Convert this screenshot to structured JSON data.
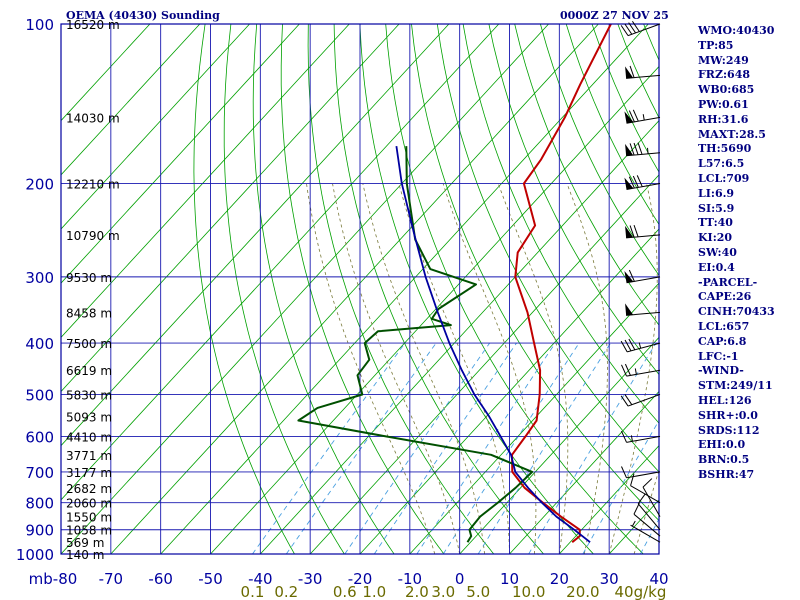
{
  "header": {
    "station": "OEMA (40430) Sounding",
    "time": "0000Z 27 NOV 25"
  },
  "indices": [
    "WMO:40430",
    "TP:85",
    "MW:249",
    "FRZ:648",
    "WB0:685",
    "PW:0.61",
    "RH:31.6",
    "MAXT:28.5",
    "TH:5690",
    "L57:6.5",
    "LCL:709",
    "LI:6.9",
    "SI:5.9",
    "TT:40",
    "KI:20",
    "SW:40",
    "EI:0.4",
    "-PARCEL-",
    "CAPE:26",
    "CINH:70433",
    "LCL:657",
    "CAP:6.8",
    "LFC:-1",
    "-WIND-",
    "STM:249/11",
    "HEL:126",
    "SHR+:0.0",
    "SRDS:112",
    "EHI:0.0",
    "BRN:0.5",
    "BSHR:47"
  ],
  "colors": {
    "frame": "#0000a0",
    "grid": "#1818b0",
    "isotherm": "#00a000",
    "dry_adiabat": "#00a000",
    "moist_adiabat": "#7a7a3a",
    "mixing_ratio": "#4aa0e0",
    "temperature": "#c00000",
    "dewpoint": "#005000",
    "parcel": "#0000a0",
    "wind_barb": "#000000",
    "pressure_label": "#0000a0",
    "temp_label": "#0000a0",
    "mixing_label": "#6a6a00",
    "height_label": "#000000"
  },
  "chart_data": {
    "type": "line",
    "title": "OEMA (40430) Sounding",
    "x_axis": {
      "label": "",
      "range": [
        -80,
        40
      ],
      "ticks": [
        -80,
        -70,
        -60,
        -50,
        -40,
        -30,
        -20,
        -10,
        0,
        10,
        20,
        30,
        40
      ],
      "tick_labels": [
        "mb-80",
        "-70",
        "-60",
        "-50",
        "-40",
        "-30",
        "-20",
        "-10",
        "0",
        "10",
        "20",
        "30",
        "40"
      ]
    },
    "y_axis": {
      "label": "",
      "scale": "log",
      "range": [
        1000,
        100
      ],
      "ticks": [
        1000,
        900,
        800,
        700,
        600,
        500,
        400,
        300,
        200,
        100
      ],
      "tick_labels": [
        "1000",
        "900",
        "800",
        "700",
        "600",
        "500",
        "400",
        "300",
        "200",
        "100"
      ]
    },
    "height_labels": [
      {
        "p": 100,
        "label": "16520 m"
      },
      {
        "p": 150,
        "label": "14030 m"
      },
      {
        "p": 200,
        "label": "12210 m"
      },
      {
        "p": 250,
        "label": "10790 m"
      },
      {
        "p": 300,
        "label": "9530 m"
      },
      {
        "p": 350,
        "label": "8458 m"
      },
      {
        "p": 400,
        "label": "7500 m"
      },
      {
        "p": 450,
        "label": "6619 m"
      },
      {
        "p": 500,
        "label": "5830 m"
      },
      {
        "p": 550,
        "label": "5093 m"
      },
      {
        "p": 600,
        "label": "4410 m"
      },
      {
        "p": 650,
        "label": "3771 m"
      },
      {
        "p": 700,
        "label": "3177 m"
      },
      {
        "p": 750,
        "label": "2682 m"
      },
      {
        "p": 800,
        "label": "2060 m"
      },
      {
        "p": 850,
        "label": "1550 m"
      },
      {
        "p": 900,
        "label": "1058 m"
      },
      {
        "p": 950,
        "label": "569 m"
      },
      {
        "p": 1000,
        "label": "140 m"
      }
    ],
    "mixing_ratio_labels": [
      {
        "w": 0.1,
        "label": "0.1"
      },
      {
        "w": 0.2,
        "label": "0.2"
      },
      {
        "w": 0.6,
        "label": "0.6"
      },
      {
        "w": 1.0,
        "label": "1.0"
      },
      {
        "w": 2.0,
        "label": "2.0"
      },
      {
        "w": 3.0,
        "label": "3.0"
      },
      {
        "w": 5.0,
        "label": "5.0"
      },
      {
        "w": 10.0,
        "label": "10.0"
      },
      {
        "w": 20.0,
        "label": "20.0"
      },
      {
        "w": 40.0,
        "label": "40g/kg"
      }
    ],
    "grid": true,
    "series": [
      {
        "key": "temperature",
        "points": [
          [
            950,
            20.4
          ],
          [
            925,
            20.8
          ],
          [
            900,
            19.6
          ],
          [
            850,
            13.4
          ],
          [
            800,
            7.2
          ],
          [
            750,
            0.8
          ],
          [
            700,
            -4.6
          ],
          [
            650,
            -7.8
          ],
          [
            600,
            -8.5
          ],
          [
            560,
            -9.2
          ],
          [
            500,
            -13.4
          ],
          [
            450,
            -17.8
          ],
          [
            400,
            -24.0
          ],
          [
            350,
            -31.0
          ],
          [
            300,
            -40.0
          ],
          [
            270,
            -44.0
          ],
          [
            240,
            -45.5
          ],
          [
            200,
            -55.5
          ],
          [
            180,
            -56.5
          ],
          [
            150,
            -59.5
          ],
          [
            130,
            -62.5
          ],
          [
            100,
            -67.5
          ]
        ]
      },
      {
        "key": "dewpoint",
        "points": [
          [
            950,
            -0.6
          ],
          [
            925,
            -1.0
          ],
          [
            900,
            -2.5
          ],
          [
            850,
            -2.8
          ],
          [
            800,
            -1.8
          ],
          [
            750,
            -1.0
          ],
          [
            700,
            -0.6
          ],
          [
            650,
            -12.0
          ],
          [
            600,
            -36.5
          ],
          [
            560,
            -57.0
          ],
          [
            530,
            -55.5
          ],
          [
            500,
            -49.0
          ],
          [
            460,
            -53.5
          ],
          [
            430,
            -54.0
          ],
          [
            400,
            -58.0
          ],
          [
            380,
            -57.5
          ],
          [
            370,
            -44.0
          ],
          [
            360,
            -49.0
          ],
          [
            345,
            -49.5
          ],
          [
            310,
            -46.5
          ],
          [
            290,
            -58.5
          ],
          [
            255,
            -67.0
          ],
          [
            200,
            -79.0
          ],
          [
            170,
            -86.0
          ]
        ]
      },
      {
        "key": "parcel",
        "points": [
          [
            950,
            24.0
          ],
          [
            900,
            18.5
          ],
          [
            850,
            12.5
          ],
          [
            800,
            7.0
          ],
          [
            750,
            1.5
          ],
          [
            700,
            -4.0
          ],
          [
            650,
            -8.0
          ],
          [
            600,
            -13.5
          ],
          [
            550,
            -19.5
          ],
          [
            500,
            -26.5
          ],
          [
            450,
            -33.5
          ],
          [
            400,
            -41.0
          ],
          [
            350,
            -49.0
          ],
          [
            300,
            -58.0
          ],
          [
            250,
            -68.0
          ],
          [
            200,
            -80.0
          ],
          [
            170,
            -88.0
          ]
        ]
      }
    ],
    "wind_barbs": [
      {
        "p": 950,
        "dir": 300,
        "spd": 5
      },
      {
        "p": 925,
        "dir": 310,
        "spd": 8
      },
      {
        "p": 900,
        "dir": 320,
        "spd": 12
      },
      {
        "p": 850,
        "dir": 330,
        "spd": 10
      },
      {
        "p": 800,
        "dir": 300,
        "spd": 8
      },
      {
        "p": 700,
        "dir": 260,
        "spd": 10
      },
      {
        "p": 600,
        "dir": 260,
        "spd": 15
      },
      {
        "p": 500,
        "dir": 250,
        "spd": 20
      },
      {
        "p": 450,
        "dir": 260,
        "spd": 25
      },
      {
        "p": 400,
        "dir": 255,
        "spd": 35
      },
      {
        "p": 350,
        "dir": 265,
        "spd": 50
      },
      {
        "p": 300,
        "dir": 260,
        "spd": 60
      },
      {
        "p": 250,
        "dir": 265,
        "spd": 70
      },
      {
        "p": 200,
        "dir": 260,
        "spd": 80
      },
      {
        "p": 175,
        "dir": 265,
        "spd": 85
      },
      {
        "p": 150,
        "dir": 260,
        "spd": 75
      },
      {
        "p": 125,
        "dir": 265,
        "spd": 60
      },
      {
        "p": 100,
        "dir": 250,
        "spd": 40
      }
    ]
  }
}
